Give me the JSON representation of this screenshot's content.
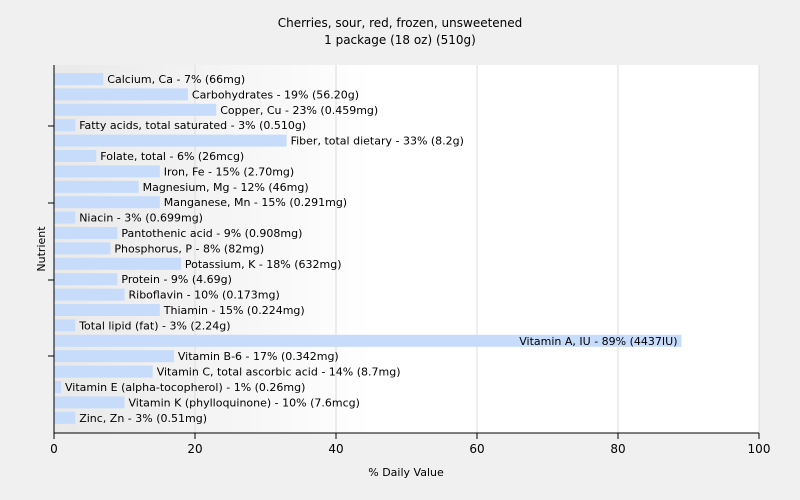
{
  "chart_data": {
    "type": "bar",
    "orientation": "horizontal",
    "title": "Cherries, sour, red, frozen, unsweetened",
    "subtitle": "1 package (18 oz) (510g)",
    "xlabel": "% Daily Value",
    "ylabel": "Nutrient",
    "xlim": [
      0,
      100
    ],
    "xticks": [
      "0",
      "20",
      "40",
      "60",
      "80",
      "100"
    ],
    "grid": true,
    "bar_color": "#c6dcfa",
    "categories": [
      "Calcium, Ca",
      "Carbohydrates",
      "Copper, Cu",
      "Fatty acids, total saturated",
      "Fiber, total dietary",
      "Folate, total",
      "Iron, Fe",
      "Magnesium, Mg",
      "Manganese, Mn",
      "Niacin",
      "Pantothenic acid",
      "Phosphorus, P",
      "Potassium, K",
      "Protein",
      "Riboflavin",
      "Thiamin",
      "Total lipid (fat)",
      "Vitamin A, IU",
      "Vitamin B-6",
      "Vitamin C, total ascorbic acid",
      "Vitamin E (alpha-tocopherol)",
      "Vitamin K (phylloquinone)",
      "Zinc, Zn"
    ],
    "values": [
      7,
      19,
      23,
      3,
      33,
      6,
      15,
      12,
      15,
      3,
      9,
      8,
      18,
      9,
      10,
      15,
      3,
      89,
      17,
      14,
      1,
      10,
      3
    ],
    "labels": [
      "Calcium, Ca - 7% (66mg)",
      "Carbohydrates - 19% (56.20g)",
      "Copper, Cu - 23% (0.459mg)",
      "Fatty acids, total saturated - 3% (0.510g)",
      "Fiber, total dietary - 33% (8.2g)",
      "Folate, total - 6% (26mcg)",
      "Iron, Fe - 15% (2.70mg)",
      "Magnesium, Mg - 12% (46mg)",
      "Manganese, Mn - 15% (0.291mg)",
      "Niacin - 3% (0.699mg)",
      "Pantothenic acid - 9% (0.908mg)",
      "Phosphorus, P - 8% (82mg)",
      "Potassium, K - 18% (632mg)",
      "Protein - 9% (4.69g)",
      "Riboflavin - 10% (0.173mg)",
      "Thiamin - 15% (0.224mg)",
      "Total lipid (fat) - 3% (2.24g)",
      "Vitamin A, IU - 89% (4437IU)",
      "Vitamin B-6 - 17% (0.342mg)",
      "Vitamin C, total ascorbic acid - 14% (8.7mg)",
      "Vitamin E (alpha-tocopherol) - 1% (0.26mg)",
      "Vitamin K (phylloquinone) - 10% (7.6mcg)",
      "Zinc, Zn - 3% (0.51mg)"
    ]
  }
}
